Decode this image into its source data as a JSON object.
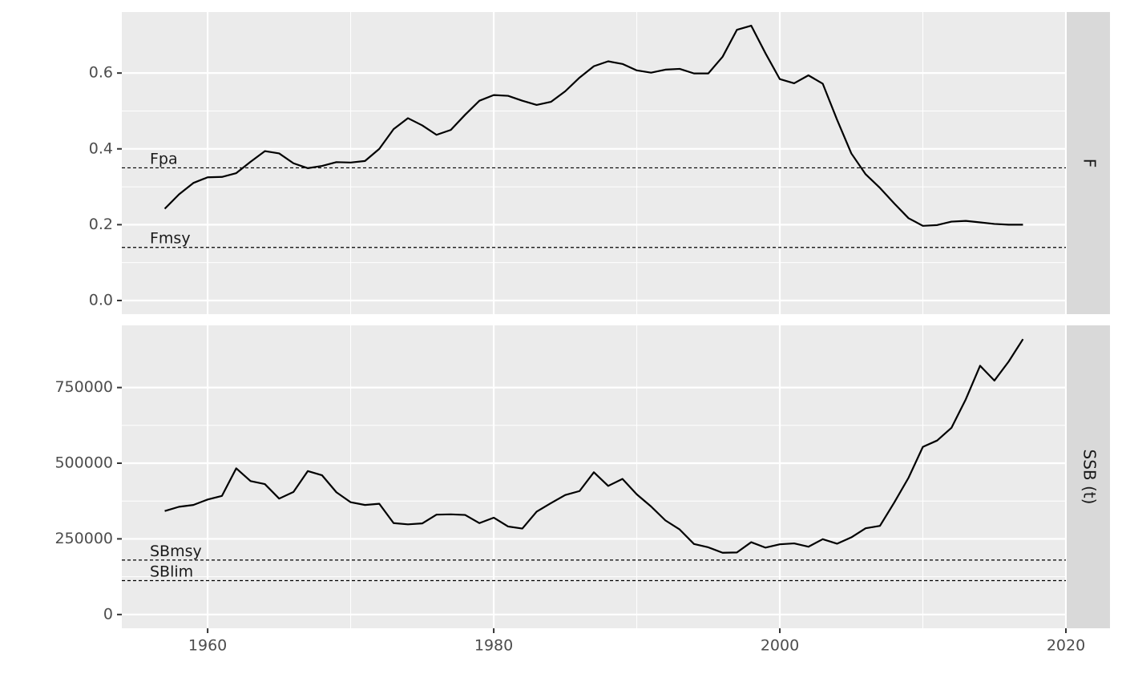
{
  "chart_data": [
    {
      "type": "line",
      "strip": "F",
      "color": "#000000",
      "grid": true,
      "x": [
        1957,
        1958,
        1959,
        1960,
        1961,
        1962,
        1963,
        1964,
        1965,
        1966,
        1967,
        1968,
        1969,
        1970,
        1971,
        1972,
        1973,
        1974,
        1975,
        1976,
        1977,
        1978,
        1979,
        1980,
        1981,
        1982,
        1983,
        1984,
        1985,
        1986,
        1987,
        1988,
        1989,
        1990,
        1991,
        1992,
        1993,
        1994,
        1995,
        1996,
        1997,
        1998,
        1999,
        2000,
        2001,
        2002,
        2003,
        2004,
        2005,
        2006,
        2007,
        2008,
        2009,
        2010,
        2011,
        2012,
        2013,
        2014,
        2015,
        2016,
        2017
      ],
      "values": [
        0.242,
        0.28,
        0.31,
        0.325,
        0.326,
        0.336,
        0.366,
        0.394,
        0.388,
        0.362,
        0.349,
        0.355,
        0.365,
        0.364,
        0.368,
        0.4,
        0.452,
        0.481,
        0.462,
        0.437,
        0.45,
        0.49,
        0.527,
        0.542,
        0.54,
        0.527,
        0.516,
        0.524,
        0.552,
        0.588,
        0.618,
        0.631,
        0.624,
        0.607,
        0.601,
        0.609,
        0.611,
        0.599,
        0.599,
        0.643,
        0.714,
        0.725,
        0.652,
        0.584,
        0.573,
        0.594,
        0.572,
        0.477,
        0.388,
        0.333,
        0.297,
        0.256,
        0.217,
        0.197,
        0.199,
        0.208,
        0.21,
        0.206,
        0.202,
        0.2,
        0.2
      ],
      "xlim": [
        1954,
        2020
      ],
      "xticks": [
        1960,
        1980,
        2000,
        2020
      ],
      "ylim": [
        -0.036,
        0.761
      ],
      "yticks": [
        {
          "value": 0,
          "label": "0.0"
        },
        0.2,
        0.4,
        0.6
      ],
      "reference_lines": [
        {
          "label": "Fpa",
          "value": 0.35
        },
        {
          "label": "Fmsy",
          "value": 0.14
        }
      ]
    },
    {
      "type": "line",
      "strip": "SSB (t)",
      "color": "#000000",
      "grid": true,
      "x": [
        1957,
        1958,
        1959,
        1960,
        1961,
        1962,
        1963,
        1964,
        1965,
        1966,
        1967,
        1968,
        1969,
        1970,
        1971,
        1972,
        1973,
        1974,
        1975,
        1976,
        1977,
        1978,
        1979,
        1980,
        1981,
        1982,
        1983,
        1984,
        1985,
        1986,
        1987,
        1988,
        1989,
        1990,
        1991,
        1992,
        1993,
        1994,
        1995,
        1996,
        1997,
        1998,
        1999,
        2000,
        2001,
        2002,
        2003,
        2004,
        2005,
        2006,
        2007,
        2008,
        2009,
        2010,
        2011,
        2012,
        2013,
        2014,
        2015,
        2016,
        2017
      ],
      "values": [
        342000,
        356000,
        362000,
        380000,
        392000,
        483000,
        441000,
        431000,
        383000,
        405000,
        474000,
        460000,
        404000,
        371000,
        362000,
        366000,
        302000,
        298000,
        301000,
        330000,
        331000,
        329000,
        302000,
        320000,
        291000,
        284000,
        340000,
        368000,
        395000,
        408000,
        470000,
        425000,
        448000,
        397000,
        357000,
        311000,
        281000,
        233000,
        222000,
        204000,
        205000,
        239000,
        221000,
        232000,
        235000,
        224000,
        249000,
        234000,
        255000,
        285000,
        293000,
        370000,
        452000,
        554000,
        575000,
        617000,
        711000,
        822000,
        773000,
        836000,
        910000
      ],
      "xlim": [
        1954,
        2020
      ],
      "xticks": [
        1960,
        1980,
        2000,
        2020
      ],
      "ylim": [
        -45500,
        955500
      ],
      "yticks": [
        0,
        250000,
        500000,
        750000
      ],
      "reference_lines": [
        {
          "label": "SBmsy",
          "value": 180000
        },
        {
          "label": "SBlim",
          "value": 112000
        }
      ]
    }
  ]
}
